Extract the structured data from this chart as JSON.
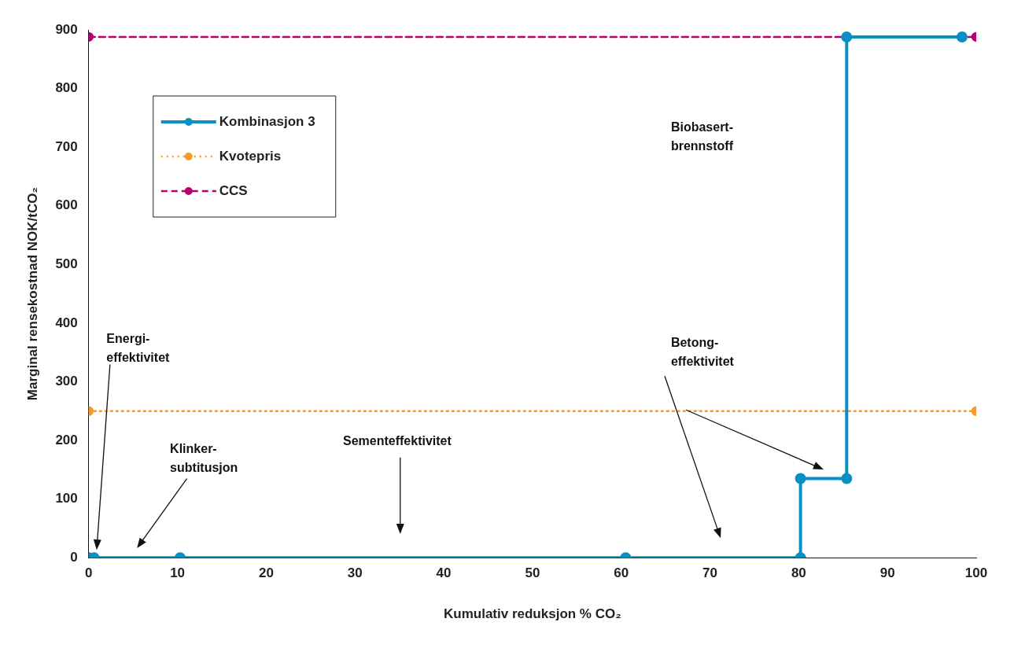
{
  "chart_data": {
    "type": "line",
    "xlabel": "Kumulativ reduksjon % CO₂",
    "ylabel": "Marginal rensekostnad NOK/tCO₂",
    "xlim": [
      0,
      100
    ],
    "xticks": [
      0,
      10,
      20,
      30,
      40,
      50,
      60,
      70,
      80,
      90,
      100
    ],
    "ylim": [
      0,
      900
    ],
    "yticks": [
      0,
      100,
      200,
      300,
      400,
      500,
      600,
      700,
      800,
      900
    ],
    "grid": false,
    "legend": "top left",
    "marker": "circle",
    "series": [
      {
        "name": "Kombinasjon 3",
        "color": "#0a8fc4",
        "line_style": "solid",
        "x": [
          0,
          0.6,
          10.3,
          60.5,
          80.2,
          80.2,
          85.4,
          85.4,
          98.4
        ],
        "values": [
          0,
          0,
          0,
          0,
          0,
          135,
          135,
          888,
          888
        ]
      },
      {
        "name": "Kvotepris",
        "color": "#f39a2b",
        "line_style": "dotted",
        "x": [
          0,
          100
        ],
        "values": [
          250,
          250
        ]
      },
      {
        "name": "CCS",
        "color": "#b5006e",
        "line_style": "dashed",
        "x": [
          0,
          100
        ],
        "values": [
          888,
          888
        ]
      }
    ],
    "annotations": [
      "Energi-\neffektivitet",
      "Klinker-\nsubtitusjon",
      "Sementeffektivitet",
      "Betong-\neffektivitet",
      "Biobasert-\nbrennstoff"
    ]
  }
}
